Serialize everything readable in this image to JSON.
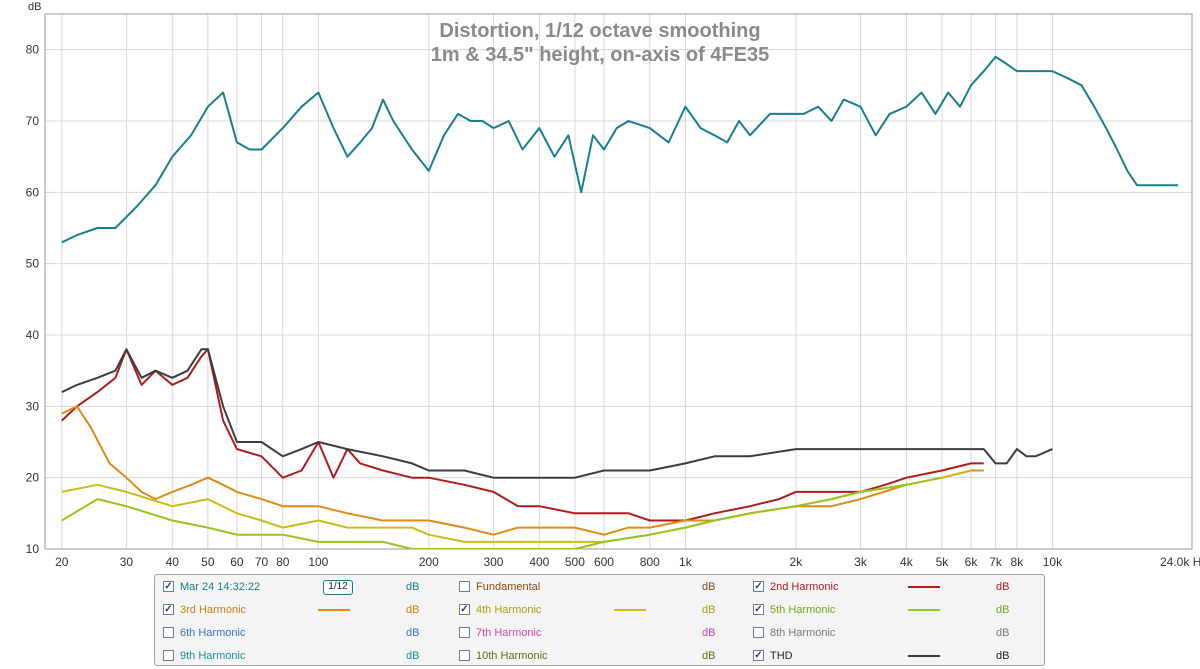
{
  "chart_data": {
    "type": "line",
    "title": "Distortion, 1/12 octave smoothing",
    "subtitle": "1m & 34.5\" height, on-axis of 4FE35",
    "ylabel": "dB",
    "xunit": "Hz",
    "xscale": "log",
    "xlim": [
      18,
      24000
    ],
    "ylim": [
      10,
      85
    ],
    "grid": true,
    "yticks": [
      10,
      20,
      30,
      40,
      50,
      60,
      70,
      80
    ],
    "xticks": [
      {
        "v": 20,
        "label": "20"
      },
      {
        "v": 30,
        "label": "30"
      },
      {
        "v": 40,
        "label": "40"
      },
      {
        "v": 50,
        "label": "50"
      },
      {
        "v": 60,
        "label": "60"
      },
      {
        "v": 70,
        "label": "70"
      },
      {
        "v": 80,
        "label": "80"
      },
      {
        "v": 100,
        "label": "100"
      },
      {
        "v": 200,
        "label": "200"
      },
      {
        "v": 300,
        "label": "300"
      },
      {
        "v": 400,
        "label": "400"
      },
      {
        "v": 500,
        "label": "500"
      },
      {
        "v": 600,
        "label": "600"
      },
      {
        "v": 800,
        "label": "800"
      },
      {
        "v": 1000,
        "label": "1k"
      },
      {
        "v": 2000,
        "label": "2k"
      },
      {
        "v": 3000,
        "label": "3k"
      },
      {
        "v": 4000,
        "label": "4k"
      },
      {
        "v": 5000,
        "label": "5k"
      },
      {
        "v": 6000,
        "label": "6k"
      },
      {
        "v": 7000,
        "label": "7k"
      },
      {
        "v": 8000,
        "label": "8k"
      },
      {
        "v": 10000,
        "label": "10k"
      },
      {
        "v": 24000,
        "label": "24.0k Hz"
      }
    ],
    "series": [
      {
        "name": "Mar 24 14:32:22",
        "color": "#17808c",
        "x": [
          20,
          22,
          25,
          28,
          32,
          36,
          40,
          45,
          50,
          55,
          60,
          65,
          70,
          80,
          90,
          100,
          110,
          120,
          130,
          140,
          150,
          160,
          180,
          200,
          220,
          240,
          260,
          280,
          300,
          330,
          360,
          400,
          440,
          480,
          520,
          560,
          600,
          650,
          700,
          800,
          900,
          1000,
          1100,
          1200,
          1300,
          1400,
          1500,
          1700,
          1900,
          2100,
          2300,
          2500,
          2700,
          3000,
          3300,
          3600,
          4000,
          4400,
          4800,
          5200,
          5600,
          6000,
          6500,
          7000,
          7500,
          8000,
          8500,
          9000,
          10000,
          11000,
          12000,
          13000,
          14000,
          15000,
          16000,
          17000,
          18000,
          19000,
          20000,
          22000
        ],
        "y": [
          53,
          54,
          55,
          55,
          58,
          61,
          65,
          68,
          72,
          74,
          67,
          66,
          66,
          69,
          72,
          74,
          69,
          65,
          67,
          69,
          73,
          70,
          66,
          63,
          68,
          71,
          70,
          70,
          69,
          70,
          66,
          69,
          65,
          68,
          60,
          68,
          66,
          69,
          70,
          69,
          67,
          72,
          69,
          68,
          67,
          70,
          68,
          71,
          71,
          71,
          72,
          70,
          73,
          72,
          68,
          71,
          72,
          74,
          71,
          74,
          72,
          75,
          77,
          79,
          78,
          77,
          77,
          77,
          77,
          76,
          75,
          72,
          69,
          66,
          63,
          61,
          61,
          61,
          61,
          61
        ]
      },
      {
        "name": "2nd Harmonic",
        "color": "#b01c1c",
        "x": [
          20,
          22,
          25,
          28,
          30,
          33,
          36,
          40,
          44,
          48,
          50,
          55,
          60,
          70,
          80,
          90,
          100,
          110,
          120,
          130,
          150,
          180,
          200,
          250,
          300,
          350,
          400,
          500,
          600,
          700,
          800,
          1000,
          1200,
          1500,
          1800,
          2000,
          2500,
          3000,
          3500,
          4000,
          5000,
          6000,
          6500
        ],
        "y": [
          28,
          30,
          32,
          34,
          38,
          33,
          35,
          33,
          34,
          37,
          38,
          28,
          24,
          23,
          20,
          21,
          25,
          20,
          24,
          22,
          21,
          20,
          20,
          19,
          18,
          16,
          16,
          15,
          15,
          15,
          14,
          14,
          15,
          16,
          17,
          18,
          18,
          18,
          19,
          20,
          21,
          22,
          22
        ]
      },
      {
        "name": "3rd Harmonic",
        "color": "#e08a17",
        "x": [
          20,
          22,
          24,
          27,
          30,
          33,
          36,
          40,
          45,
          50,
          55,
          60,
          70,
          80,
          90,
          100,
          120,
          150,
          180,
          200,
          250,
          300,
          350,
          400,
          500,
          600,
          700,
          800,
          1000,
          1200,
          1500,
          2000,
          2500,
          3000,
          4000,
          5000,
          6000,
          6500
        ],
        "y": [
          29,
          30,
          27,
          22,
          20,
          18,
          17,
          18,
          19,
          20,
          19,
          18,
          17,
          16,
          16,
          16,
          15,
          14,
          14,
          14,
          13,
          12,
          13,
          13,
          13,
          12,
          13,
          13,
          14,
          14,
          15,
          16,
          16,
          17,
          19,
          20,
          21,
          21
        ]
      },
      {
        "name": "4th Harmonic",
        "color": "#c9be14",
        "x": [
          20,
          25,
          30,
          40,
          50,
          60,
          70,
          80,
          100,
          120,
          150,
          180,
          200,
          250,
          300,
          400,
          500,
          600,
          800,
          1000,
          1200,
          1500,
          2000,
          2500,
          3000,
          4000,
          5000,
          6000
        ],
        "y": [
          18,
          19,
          18,
          16,
          17,
          15,
          14,
          13,
          14,
          13,
          13,
          13,
          12,
          11,
          11,
          11,
          11,
          11,
          12,
          13,
          14,
          15,
          16,
          17,
          18,
          19,
          20,
          21
        ]
      },
      {
        "name": "5th Harmonic",
        "color": "#99c41f",
        "x": [
          20,
          25,
          30,
          40,
          50,
          60,
          70,
          80,
          100,
          120,
          150,
          180,
          200,
          250,
          300,
          400,
          500,
          600,
          800,
          1000,
          1200,
          1500,
          2000,
          2500,
          3000,
          4000,
          5000
        ],
        "y": [
          14,
          17,
          16,
          14,
          13,
          12,
          12,
          12,
          11,
          11,
          11,
          10,
          10,
          10,
          10,
          10,
          10,
          11,
          12,
          13,
          14,
          15,
          16,
          17,
          18,
          19,
          20
        ]
      },
      {
        "name": "THD",
        "color": "#3c3c3c",
        "x": [
          20,
          22,
          25,
          28,
          30,
          33,
          36,
          40,
          44,
          48,
          50,
          55,
          60,
          70,
          80,
          90,
          100,
          120,
          150,
          180,
          200,
          250,
          300,
          350,
          400,
          500,
          600,
          800,
          1000,
          1200,
          1500,
          2000,
          2500,
          3000,
          4000,
          5000,
          6000,
          6500,
          7000,
          7500,
          8000,
          8500,
          9000,
          10000
        ],
        "y": [
          32,
          33,
          34,
          35,
          38,
          34,
          35,
          34,
          35,
          38,
          38,
          30,
          25,
          25,
          23,
          24,
          25,
          24,
          23,
          22,
          21,
          21,
          20,
          20,
          20,
          20,
          21,
          21,
          22,
          23,
          23,
          24,
          24,
          24,
          24,
          24,
          24,
          24,
          22,
          22,
          24,
          23,
          23,
          24
        ]
      }
    ]
  },
  "legend": [
    {
      "label": "Mar 24 14:32:22",
      "checked": true,
      "color": "#17808c",
      "swatch": "smooth",
      "smoothing": "1/12",
      "unit": "dB",
      "labelColor": "#17808c",
      "unitColor": "#17808c"
    },
    {
      "label": "Fundamental",
      "checked": false,
      "color": null,
      "unit": "dB",
      "labelColor": "#8b4a14",
      "unitColor": "#8b4a14"
    },
    {
      "label": "2nd Harmonic",
      "checked": true,
      "color": "#b01c1c",
      "unit": "dB",
      "labelColor": "#b01c1c",
      "unitColor": "#b01c1c"
    },
    {
      "label": "3rd Harmonic",
      "checked": true,
      "color": "#e08a17",
      "unit": "dB",
      "labelColor": "#c97f10",
      "unitColor": "#c97f10"
    },
    {
      "label": "4th Harmonic",
      "checked": true,
      "color": "#c9be14",
      "unit": "dB",
      "labelColor": "#a8a010",
      "unitColor": "#a8a010"
    },
    {
      "label": "5th Harmonic",
      "checked": true,
      "color": "#99c41f",
      "unit": "dB",
      "labelColor": "#7aa51a",
      "unitColor": "#7aa51a"
    },
    {
      "label": "6th Harmonic",
      "checked": false,
      "color": null,
      "unit": "dB",
      "labelColor": "#3a74c4",
      "unitColor": "#3a74c4"
    },
    {
      "label": "7th Harmonic",
      "checked": false,
      "color": null,
      "unit": "dB",
      "labelColor": "#c44ab8",
      "unitColor": "#c44ab8"
    },
    {
      "label": "8th Harmonic",
      "checked": false,
      "color": null,
      "unit": "dB",
      "labelColor": "#7a7a7a",
      "unitColor": "#7a7a7a"
    },
    {
      "label": "9th Harmonic",
      "checked": false,
      "color": null,
      "unit": "dB",
      "labelColor": "#179098",
      "unitColor": "#179098"
    },
    {
      "label": "10th Harmonic",
      "checked": false,
      "color": null,
      "unit": "dB",
      "labelColor": "#6b6b10",
      "unitColor": "#6b6b10"
    },
    {
      "label": "THD",
      "checked": true,
      "color": "#3c3c3c",
      "unit": "dB",
      "labelColor": "#222222",
      "unitColor": "#222222"
    }
  ]
}
